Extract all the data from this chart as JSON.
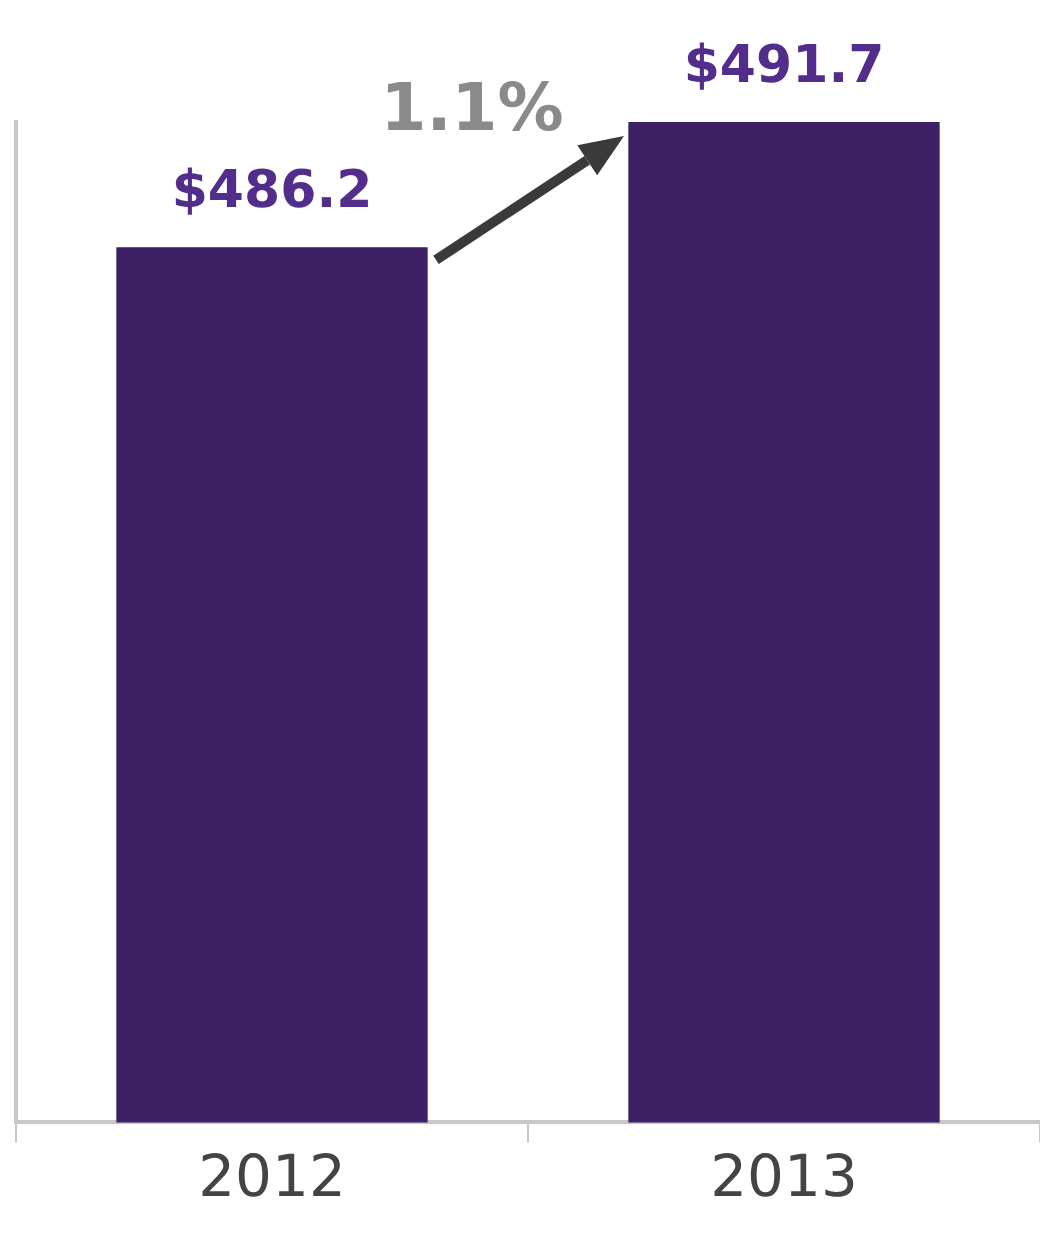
{
  "chart_data": {
    "type": "bar",
    "categories": [
      "2012",
      "2013"
    ],
    "values": [
      486.2,
      491.7
    ],
    "color": "#3d1f63",
    "value_labels": [
      "$486.2",
      "$491.7"
    ],
    "ylim": [
      448,
      491.7
    ],
    "tick_labels": "x",
    "grid": false,
    "legend": false,
    "annotations": [
      "1.1%"
    ]
  }
}
